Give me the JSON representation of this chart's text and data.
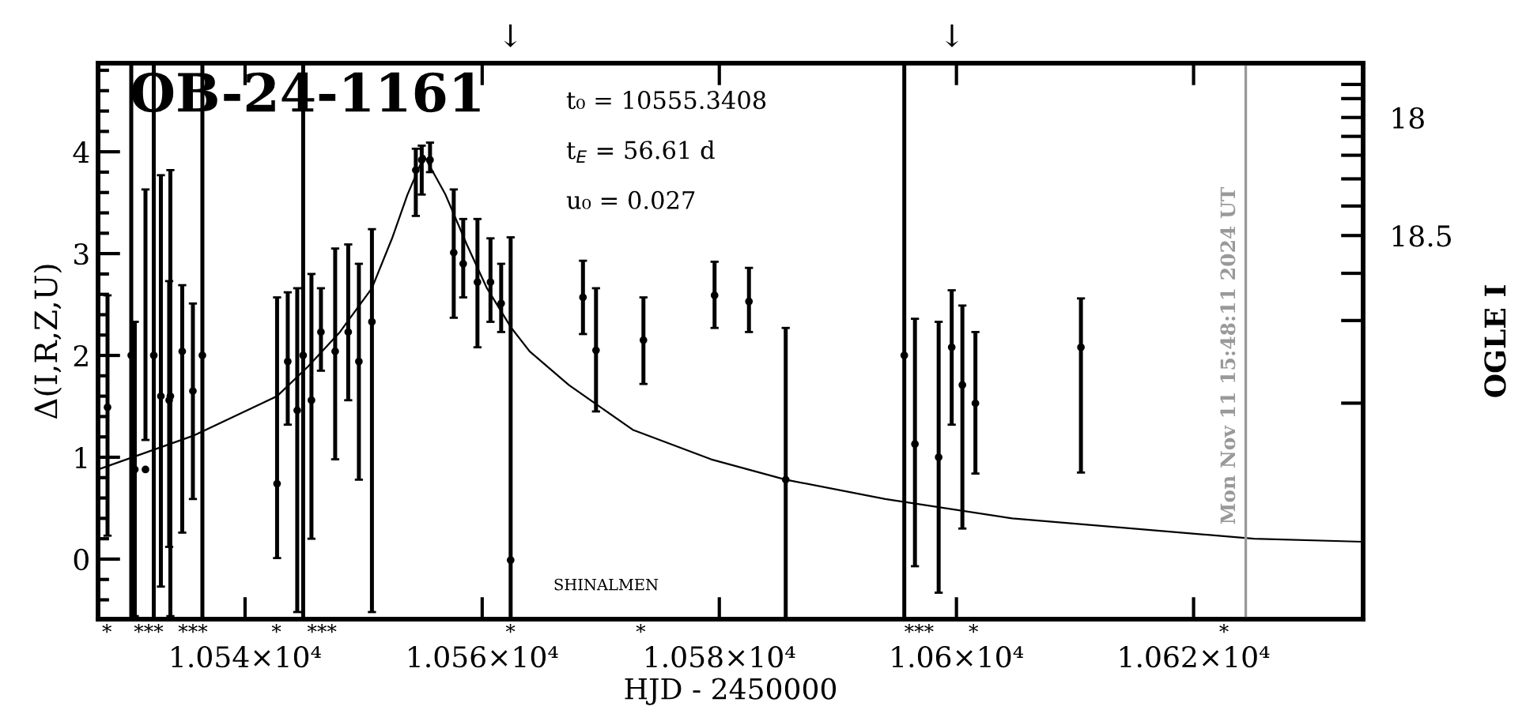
{
  "chart_data": {
    "type": "scatter",
    "title": "OB-24-1161",
    "xlabel": "HJD - 2450000",
    "ylabel": "Δ(I,R,Z,U)",
    "y2label": "OGLE I",
    "xlim": [
      10527.6,
      10634.3
    ],
    "xticks": [
      {
        "value": 10540,
        "label": "1.054×10⁴"
      },
      {
        "value": 10560,
        "label": "1.056×10⁴"
      },
      {
        "value": 10580,
        "label": "1.058×10⁴"
      },
      {
        "value": 10600,
        "label": "1.06×10⁴"
      },
      {
        "value": 10620,
        "label": "1.062×10⁴"
      }
    ],
    "ylim": [
      -0.59,
      4.87
    ],
    "yticks": [
      0,
      1,
      2,
      3,
      4
    ],
    "y2lim": [
      20.125,
      17.77
    ],
    "y2ticks": [
      {
        "value": 17.86,
        "label": null
      },
      {
        "value": 17.92,
        "label": null
      },
      18,
      {
        "value": 18.08,
        "label": null
      },
      {
        "value": 18.16,
        "label": null
      },
      {
        "value": 18.26,
        "label": null
      },
      {
        "value": 18.375,
        "label": null
      },
      18.5,
      {
        "value": 18.66,
        "label": null
      },
      {
        "value": 18.86,
        "label": null
      },
      {
        "value": 19.21,
        "label": null
      }
    ],
    "grid": false,
    "marker": "circle",
    "series": [
      {
        "color": "#000000",
        "x": [
          10528.4,
          10530.4,
          10530.7,
          10531.6,
          10532.3,
          10532.9,
          10533.6,
          10533.7,
          10534.7,
          10535.6,
          10536.4,
          10542.7,
          10543.6,
          10544.4,
          10544.9,
          10545.6,
          10546.4,
          10547.6,
          10548.7,
          10549.6,
          10550.7,
          10554.4,
          10554.9,
          10555.6,
          10557.6,
          10558.4,
          10559.6,
          10560.7,
          10561.6,
          10562.4,
          10568.5,
          10569.6,
          10573.6,
          10579.6,
          10582.5,
          10585.6,
          10595.6,
          10596.5,
          10598.5,
          10599.6,
          10600.5,
          10601.6,
          10610.5
        ],
        "values": [
          1.49,
          2.0,
          0.88,
          0.88,
          2.0,
          1.6,
          1.56,
          1.6,
          2.04,
          1.65,
          2.0,
          0.74,
          1.94,
          1.46,
          2.0,
          1.56,
          2.23,
          2.04,
          2.23,
          1.94,
          2.33,
          3.82,
          3.92,
          3.92,
          3.01,
          2.9,
          2.72,
          2.72,
          2.51,
          -0.01,
          2.57,
          2.05,
          2.15,
          2.59,
          2.53,
          0.78,
          2.0,
          1.13,
          1.0,
          2.08,
          1.71,
          1.53,
          2.08
        ],
        "errors": [
          [
            0.23,
            2.59
          ],
          [
            -0.59,
            4.87
          ],
          [
            -0.56,
            2.33
          ],
          [
            1.17,
            3.63
          ],
          [
            -0.59,
            4.87
          ],
          [
            -0.27,
            3.77
          ],
          [
            0.12,
            2.73
          ],
          [
            -0.56,
            3.82
          ],
          [
            0.26,
            2.69
          ],
          [
            0.59,
            2.51
          ],
          [
            -0.59,
            4.87
          ],
          [
            0.01,
            2.57
          ],
          [
            1.32,
            2.62
          ],
          [
            -0.52,
            2.66
          ],
          [
            -0.59,
            4.87
          ],
          [
            0.2,
            2.8
          ],
          [
            1.85,
            2.66
          ],
          [
            0.98,
            3.05
          ],
          [
            1.56,
            3.09
          ],
          [
            0.78,
            2.9
          ],
          [
            -0.52,
            3.24
          ],
          [
            3.37,
            4.03
          ],
          [
            3.58,
            4.06
          ],
          [
            3.8,
            4.09
          ],
          [
            2.37,
            3.63
          ],
          [
            2.57,
            3.34
          ],
          [
            2.08,
            3.34
          ],
          [
            2.33,
            3.15
          ],
          [
            2.23,
            2.9
          ],
          [
            -0.59,
            3.16
          ],
          [
            2.21,
            2.93
          ],
          [
            1.45,
            2.66
          ],
          [
            1.72,
            2.57
          ],
          [
            2.27,
            2.92
          ],
          [
            2.23,
            2.86
          ],
          [
            -0.59,
            2.27
          ],
          [
            -0.59,
            4.87
          ],
          [
            -0.07,
            2.36
          ],
          [
            -0.33,
            2.33
          ],
          [
            1.32,
            2.64
          ],
          [
            0.3,
            2.49
          ],
          [
            0.84,
            2.23
          ],
          [
            0.85,
            2.56
          ]
        ]
      },
      {
        "type": "line",
        "color": "#000000",
        "marker": "none",
        "line_style": "solid",
        "x": [
          10527.6,
          10535.6,
          10542.7,
          10545.3,
          10548.0,
          10550.7,
          10552.4,
          10553.7,
          10555.1,
          10556.9,
          10558.7,
          10560.4,
          10562.4,
          10564.0,
          10567.3,
          10572.7,
          10579.3,
          10585.6,
          10594.0,
          10604.7,
          10625.1,
          10634.3
        ],
        "values": [
          0.88,
          1.21,
          1.6,
          1.89,
          2.23,
          2.66,
          3.15,
          3.58,
          3.96,
          3.58,
          3.09,
          2.66,
          2.28,
          2.04,
          1.71,
          1.27,
          0.98,
          0.78,
          0.59,
          0.4,
          0.2,
          0.17
        ]
      }
    ],
    "ref_lines": [
      {
        "axis": "x",
        "value": 10624.4,
        "color": "#999999",
        "line_style": "solid"
      }
    ],
    "annotations": [
      "t₀ = 10555.3408",
      "t$_{E}$ = 56.61 d",
      "u₀ = 0.027",
      "SHINALMEN",
      "Mon Nov 11 15:48:11 2024 UT",
      "↓",
      "↓",
      "*",
      "***",
      "***",
      "*",
      "***",
      "*",
      "*",
      "***",
      "*",
      "*"
    ]
  }
}
